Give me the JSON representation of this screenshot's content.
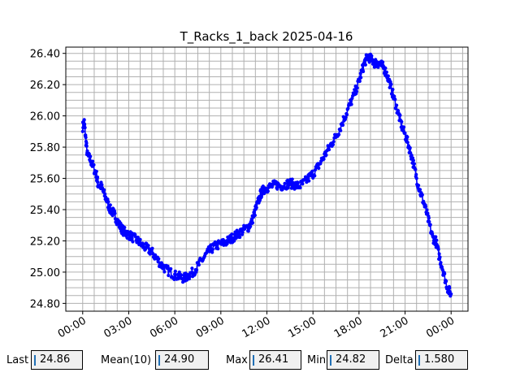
{
  "chart_data": {
    "type": "line",
    "title": "T_Racks_1_back 2025-04-16",
    "xlabel": "",
    "ylabel": "",
    "x_unit": "hours",
    "xlim": [
      -1.1,
      25.1
    ],
    "ylim": [
      24.75,
      26.44
    ],
    "xticks": [
      0,
      3,
      6,
      9,
      12,
      15,
      18,
      21,
      24
    ],
    "xtick_labels": [
      "00:00",
      "03:00",
      "06:00",
      "09:00",
      "12:00",
      "15:00",
      "18:00",
      "21:00",
      "00:00"
    ],
    "yticks": [
      24.8,
      25.0,
      25.2,
      25.4,
      25.6,
      25.8,
      26.0,
      26.2,
      26.4
    ],
    "ytick_labels": [
      "24.80",
      "25.00",
      "25.20",
      "25.40",
      "25.60",
      "25.80",
      "26.00",
      "26.20",
      "26.40"
    ],
    "grid": true,
    "series": [
      {
        "color": "#0000ff",
        "x": [
          0.0,
          0.1,
          0.2,
          0.3,
          0.5,
          0.7,
          0.9,
          1.0,
          1.2,
          1.4,
          1.6,
          1.8,
          2.0,
          2.2,
          2.4,
          2.6,
          2.8,
          3.0,
          3.3,
          3.6,
          3.9,
          4.2,
          4.5,
          4.8,
          5.1,
          5.4,
          5.7,
          6.0,
          6.3,
          6.6,
          6.9,
          7.2,
          7.5,
          7.8,
          8.1,
          8.4,
          8.7,
          9.0,
          9.3,
          9.6,
          9.9,
          10.2,
          10.5,
          10.8,
          11.0,
          11.2,
          11.4,
          11.6,
          11.8,
          12.0,
          12.3,
          12.6,
          12.9,
          13.2,
          13.5,
          13.8,
          14.1,
          14.4,
          14.7,
          15.0,
          15.3,
          15.6,
          15.9,
          16.2,
          16.5,
          16.8,
          17.1,
          17.4,
          17.7,
          18.0,
          18.2,
          18.4,
          18.6,
          18.8,
          19.0,
          19.2,
          19.4,
          19.6,
          19.8,
          20.0,
          20.2,
          20.4,
          20.6,
          20.8,
          21.0,
          21.2,
          21.4,
          21.6,
          21.8,
          22.0,
          22.2,
          22.4,
          22.6,
          22.8,
          23.0,
          23.2,
          23.4,
          23.6,
          23.8,
          24.0
        ],
        "y": [
          25.93,
          25.96,
          25.85,
          25.75,
          25.72,
          25.67,
          25.62,
          25.56,
          25.55,
          25.5,
          25.45,
          25.4,
          25.38,
          25.34,
          25.3,
          25.27,
          25.25,
          25.24,
          25.22,
          25.2,
          25.17,
          25.15,
          25.13,
          25.09,
          25.05,
          25.02,
          25.0,
          24.98,
          24.97,
          24.96,
          24.98,
          25.0,
          25.04,
          25.08,
          25.12,
          25.15,
          25.17,
          25.18,
          25.19,
          25.21,
          25.23,
          25.25,
          25.27,
          25.29,
          25.32,
          25.38,
          25.44,
          25.5,
          25.53,
          25.54,
          25.55,
          25.56,
          25.55,
          25.56,
          25.57,
          25.56,
          25.55,
          25.57,
          25.6,
          25.63,
          25.67,
          25.72,
          25.77,
          25.82,
          25.87,
          25.93,
          26.0,
          26.07,
          26.14,
          26.22,
          26.29,
          26.35,
          26.38,
          26.36,
          26.34,
          26.34,
          26.33,
          26.31,
          26.27,
          26.21,
          26.14,
          26.07,
          26.0,
          25.93,
          25.88,
          25.82,
          25.75,
          25.67,
          25.58,
          25.51,
          25.45,
          25.38,
          25.3,
          25.22,
          25.2,
          25.11,
          25.04,
          24.96,
          24.89,
          24.86
        ]
      }
    ]
  },
  "stats": [
    {
      "label": "Last",
      "value": "24.86"
    },
    {
      "label": "Mean(10)",
      "value": "24.90"
    },
    {
      "label": "Max",
      "value": "26.41"
    },
    {
      "label": "Min",
      "value": "24.82"
    },
    {
      "label": "Delta",
      "value": "1.580"
    }
  ]
}
